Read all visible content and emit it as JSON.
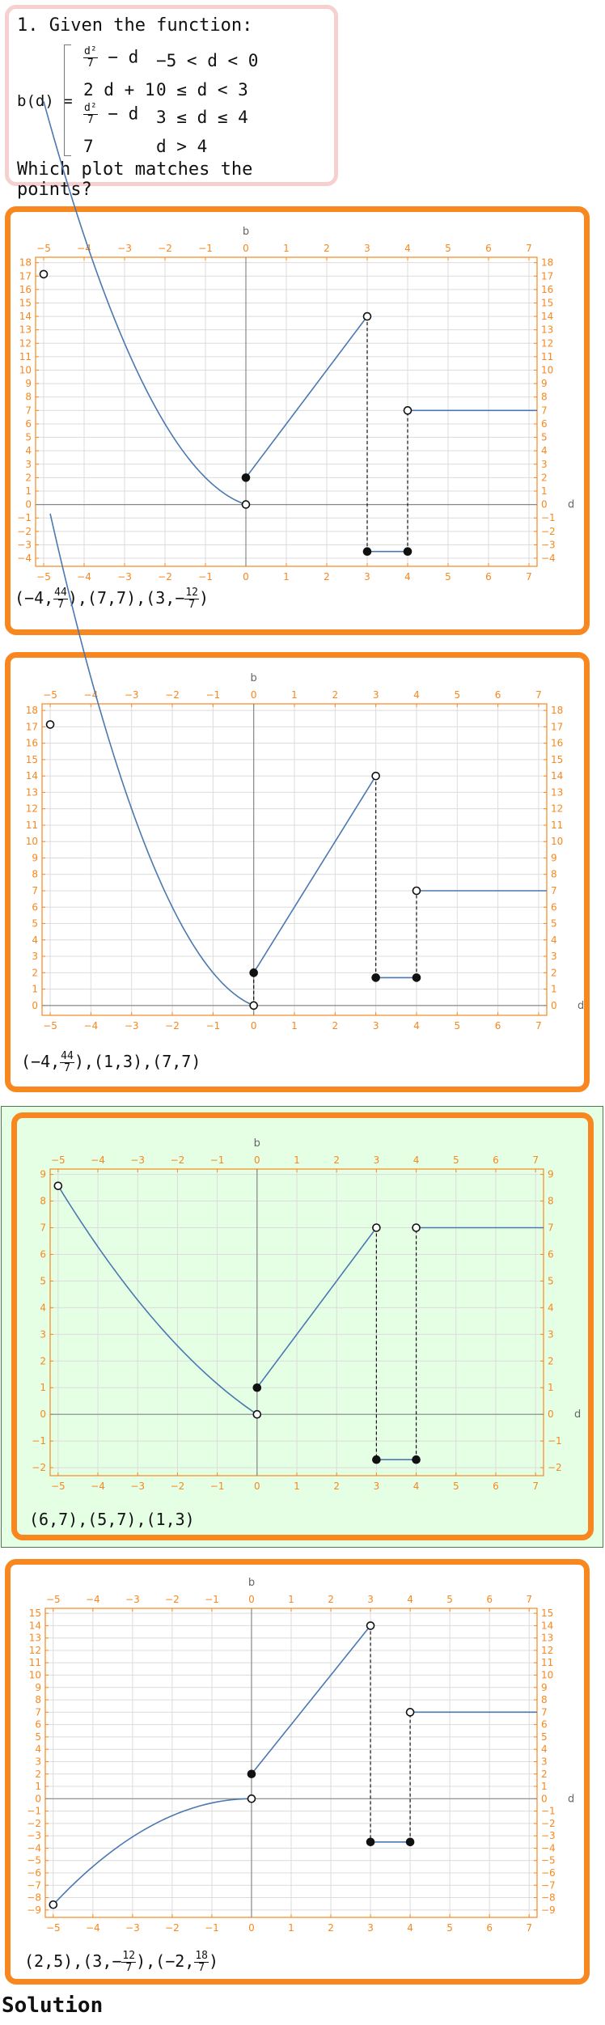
{
  "question": {
    "title": "1. Given the function:",
    "fn_label": "b(d) =",
    "pieces": [
      {
        "expr_num": "d²",
        "expr_den": "7",
        "expr_rest": " − d",
        "cond": "−5 < d < 0"
      },
      {
        "expr": "2 d + 1",
        "cond": "0 ≤ d < 3"
      },
      {
        "expr_num": "d²",
        "expr_den": "7",
        "expr_rest": " − d",
        "cond": "3 ≤ d ≤ 4"
      },
      {
        "expr": "7",
        "cond": "d > 4"
      }
    ],
    "prompt": "Which plot matches the points?"
  },
  "colors": {
    "accent": "#f7871e",
    "curve": "#4a78b0",
    "selected_bg": "#e5ffe5",
    "question_border": "#f6cfcf"
  },
  "options": [
    {
      "selected": false,
      "points": [
        {
          "t": "("
        },
        {
          "t": "−4,"
        },
        {
          "num": "44",
          "den": "7"
        },
        {
          "t": "),(7,7),(3,−"
        },
        {
          "num": "12",
          "den": "7"
        },
        {
          "t": ")"
        }
      ],
      "chart": {
        "xlabel": "d",
        "ylabel": "b",
        "xlim": [
          -5.2,
          7.2
        ],
        "ylim": [
          -4.6,
          18.4
        ],
        "xticks": [
          -5,
          -4,
          -3,
          -2,
          -1,
          0,
          1,
          2,
          3,
          4,
          5,
          6,
          7
        ],
        "yticks": [
          -4,
          -3,
          -2,
          -1,
          0,
          1,
          2,
          3,
          4,
          5,
          6,
          7,
          8,
          9,
          10,
          11,
          12,
          13,
          14,
          15,
          16,
          17,
          18
        ],
        "pieces": [
          {
            "f": "sq",
            "a": 1,
            "b": 1,
            "from": -5,
            "to": 0
          },
          {
            "f": "lin",
            "m": 4,
            "c": 2,
            "from": 0,
            "to": 3
          },
          {
            "f": "const",
            "v": -3.5,
            "from": 3,
            "to": 4
          },
          {
            "f": "const",
            "v": 7,
            "from": 4,
            "to": 7.2
          }
        ],
        "jumps": [
          [
            3,
            14,
            -3.5
          ],
          [
            4,
            -3.5,
            7
          ]
        ],
        "dots": [
          {
            "x": -5,
            "y": 17.14,
            "open": true
          },
          {
            "x": 0,
            "y": 0,
            "open": true
          },
          {
            "x": 0,
            "y": 2,
            "open": false
          },
          {
            "x": 3,
            "y": 14,
            "open": true
          },
          {
            "x": 3,
            "y": -3.5,
            "open": false
          },
          {
            "x": 4,
            "y": -3.5,
            "open": false
          },
          {
            "x": 4,
            "y": 7,
            "open": true
          }
        ]
      }
    },
    {
      "selected": false,
      "points": [
        {
          "t": "("
        },
        {
          "t": "−4,"
        },
        {
          "num": "44",
          "den": "7"
        },
        {
          "t": "),(1,3),(7,7)"
        }
      ],
      "chart": {
        "xlabel": "d",
        "ylabel": "b",
        "xlim": [
          -5.2,
          7.2
        ],
        "ylim": [
          -0.6,
          18.4
        ],
        "xticks": [
          -5,
          -4,
          -3,
          -2,
          -1,
          0,
          1,
          2,
          3,
          4,
          5,
          6,
          7
        ],
        "yticks": [
          0,
          1,
          2,
          3,
          4,
          5,
          6,
          7,
          8,
          9,
          10,
          11,
          12,
          13,
          14,
          15,
          16,
          17,
          18
        ],
        "pieces": [
          {
            "f": "sq",
            "a": 1,
            "b": 1,
            "from": -5,
            "to": 0
          },
          {
            "f": "lin",
            "m": 4,
            "c": 2,
            "from": 0,
            "to": 3
          },
          {
            "f": "const",
            "v": 1.7,
            "from": 3,
            "to": 4
          },
          {
            "f": "const",
            "v": 7,
            "from": 4,
            "to": 7.2
          }
        ],
        "jumps": [
          [
            0,
            0,
            2
          ],
          [
            3,
            14,
            1.7
          ],
          [
            4,
            1.7,
            7
          ]
        ],
        "dots": [
          {
            "x": -5,
            "y": 17.14,
            "open": true
          },
          {
            "x": 0,
            "y": 0,
            "open": true
          },
          {
            "x": 0,
            "y": 2,
            "open": false
          },
          {
            "x": 3,
            "y": 14,
            "open": true
          },
          {
            "x": 3,
            "y": 1.7,
            "open": false
          },
          {
            "x": 4,
            "y": 1.7,
            "open": false
          },
          {
            "x": 4,
            "y": 7,
            "open": true
          }
        ]
      }
    },
    {
      "selected": true,
      "points": [
        {
          "t": "(6,7),(5,7),(1,3)"
        }
      ],
      "chart": {
        "xlabel": "d",
        "ylabel": "b",
        "xlim": [
          -5.2,
          7.2
        ],
        "ylim": [
          -2.3,
          9.2
        ],
        "xticks": [
          -5,
          -4,
          -3,
          -2,
          -1,
          0,
          1,
          2,
          3,
          4,
          5,
          6,
          7
        ],
        "yticks": [
          -2,
          -1,
          0,
          1,
          2,
          3,
          4,
          5,
          6,
          7,
          8,
          9
        ],
        "pieces": [
          {
            "f": "sq",
            "a": 0.142857,
            "b": 1,
            "from": -5,
            "to": 0
          },
          {
            "f": "lin",
            "m": 2,
            "c": 1,
            "from": 0,
            "to": 3
          },
          {
            "f": "const",
            "v": -1.7,
            "from": 3,
            "to": 4
          },
          {
            "f": "const",
            "v": 7,
            "from": 4,
            "to": 7.2
          }
        ],
        "jumps": [
          [
            3,
            7,
            -1.7
          ],
          [
            4,
            -1.7,
            7
          ]
        ],
        "dots": [
          {
            "x": -5,
            "y": 8.57,
            "open": true
          },
          {
            "x": 0,
            "y": 0,
            "open": true
          },
          {
            "x": 0,
            "y": 1,
            "open": false
          },
          {
            "x": 3,
            "y": 7,
            "open": true
          },
          {
            "x": 3,
            "y": -1.7,
            "open": false
          },
          {
            "x": 4,
            "y": -1.7,
            "open": false
          },
          {
            "x": 4,
            "y": 7,
            "open": true
          }
        ]
      }
    },
    {
      "selected": false,
      "points": [
        {
          "t": "(2,5),(3,−"
        },
        {
          "num": "12",
          "den": "7"
        },
        {
          "t": "),(−2,"
        },
        {
          "num": "18",
          "den": "7"
        },
        {
          "t": ")"
        }
      ],
      "chart": {
        "xlabel": "d",
        "ylabel": "b",
        "xlim": [
          -5.2,
          7.2
        ],
        "ylim": [
          -9.6,
          15.4
        ],
        "xticks": [
          -5,
          -4,
          -3,
          -2,
          -1,
          0,
          1,
          2,
          3,
          4,
          5,
          6,
          7
        ],
        "yticks": [
          -9,
          -8,
          -7,
          -6,
          -5,
          -4,
          -3,
          -2,
          -1,
          0,
          1,
          2,
          3,
          4,
          5,
          6,
          7,
          8,
          9,
          10,
          11,
          12,
          13,
          14,
          15
        ],
        "pieces": [
          {
            "f": "sq",
            "a": -0.342857,
            "b": 0,
            "from": -5,
            "to": 0
          },
          {
            "f": "lin",
            "m": 4,
            "c": 2,
            "from": 0,
            "to": 3
          },
          {
            "f": "const",
            "v": -3.5,
            "from": 3,
            "to": 4
          },
          {
            "f": "const",
            "v": 7,
            "from": 4,
            "to": 7.2
          }
        ],
        "jumps": [
          [
            3,
            14,
            -3.5
          ],
          [
            4,
            -3.5,
            7
          ]
        ],
        "dots": [
          {
            "x": -5,
            "y": -8.57,
            "open": true
          },
          {
            "x": 0,
            "y": 0,
            "open": true
          },
          {
            "x": 0,
            "y": 2,
            "open": false
          },
          {
            "x": 3,
            "y": 14,
            "open": true
          },
          {
            "x": 3,
            "y": -3.5,
            "open": false
          },
          {
            "x": 4,
            "y": -3.5,
            "open": false
          },
          {
            "x": 4,
            "y": 7,
            "open": true
          }
        ]
      }
    }
  ],
  "solution": "Solution"
}
